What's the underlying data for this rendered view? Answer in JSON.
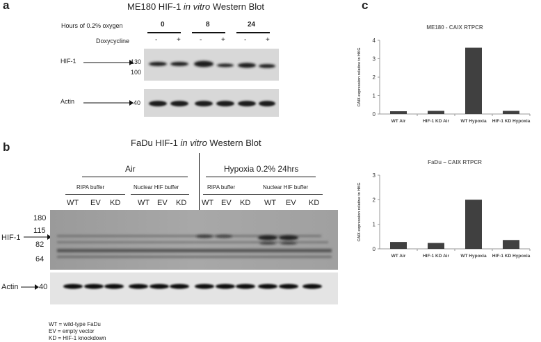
{
  "panel_a": {
    "letter": "a",
    "title_pre": "ME180 HIF-1 ",
    "title_italic": "in vitro",
    "title_post": " Western Blot",
    "hours_label": "Hours of 0.2% oxygen",
    "hours": [
      "0",
      "8",
      "24"
    ],
    "dox_label": "Doxycycline",
    "dox_signs": [
      "-",
      "+",
      "-",
      "+",
      "-",
      "+"
    ],
    "hif_label": "HIF-1",
    "mw_hif": [
      "130",
      "100"
    ],
    "actin_label": "Actin",
    "mw_actin": "40"
  },
  "panel_b": {
    "letter": "b",
    "title_pre": "FaDu HIF-1 ",
    "title_italic": "in vitro",
    "title_post": " Western Blot",
    "air_label": "Air",
    "hypoxia_label": "Hypoxia 0.2% 24hrs",
    "buffers": [
      "RIPA buffer",
      "Nuclear HIF buffer",
      "RIPA buffer",
      "Nuclear HIF buffer"
    ],
    "lanes": [
      "WT",
      "EV",
      "KD",
      "WT",
      "EV",
      "KD",
      "WT",
      "EV",
      "KD",
      "WT",
      "EV",
      "KD"
    ],
    "mw_markers": [
      "180",
      "115",
      "82",
      "64"
    ],
    "hif_label": "HIF-1",
    "actin_label": "Actin",
    "mw_actin": "40",
    "legend": [
      "WT = wild-type FaDu",
      "EV = empty vector",
      "KD = HIF-1 knockdown"
    ]
  },
  "panel_c": {
    "letter": "c"
  },
  "chart_data": [
    {
      "type": "bar",
      "title": "ME180 - CAIX RTPCR",
      "ylabel": "CAIX expression relative to HKG",
      "categories": [
        "WT Air",
        "HIF-1 KD Air",
        "WT Hypoxia",
        "HIF-1 KD Hypoxia"
      ],
      "values": [
        0.15,
        0.17,
        3.6,
        0.17
      ],
      "ylim": [
        0,
        4
      ],
      "yticks": [
        "0",
        "1",
        "2",
        "3",
        "4"
      ],
      "color": "#404040"
    },
    {
      "type": "bar",
      "title": "FaDu – CAIX RTPCR",
      "ylabel": "CAIX expression relative to HKG",
      "categories": [
        "WT Air",
        "HIF-1 KD Air",
        "WT Hypoxia",
        "HIF-1 KD Hypoxia"
      ],
      "values": [
        0.28,
        0.24,
        2.0,
        0.36
      ],
      "ylim": [
        0,
        3
      ],
      "yticks": [
        "0",
        "1",
        "2",
        "3"
      ],
      "color": "#404040"
    }
  ]
}
